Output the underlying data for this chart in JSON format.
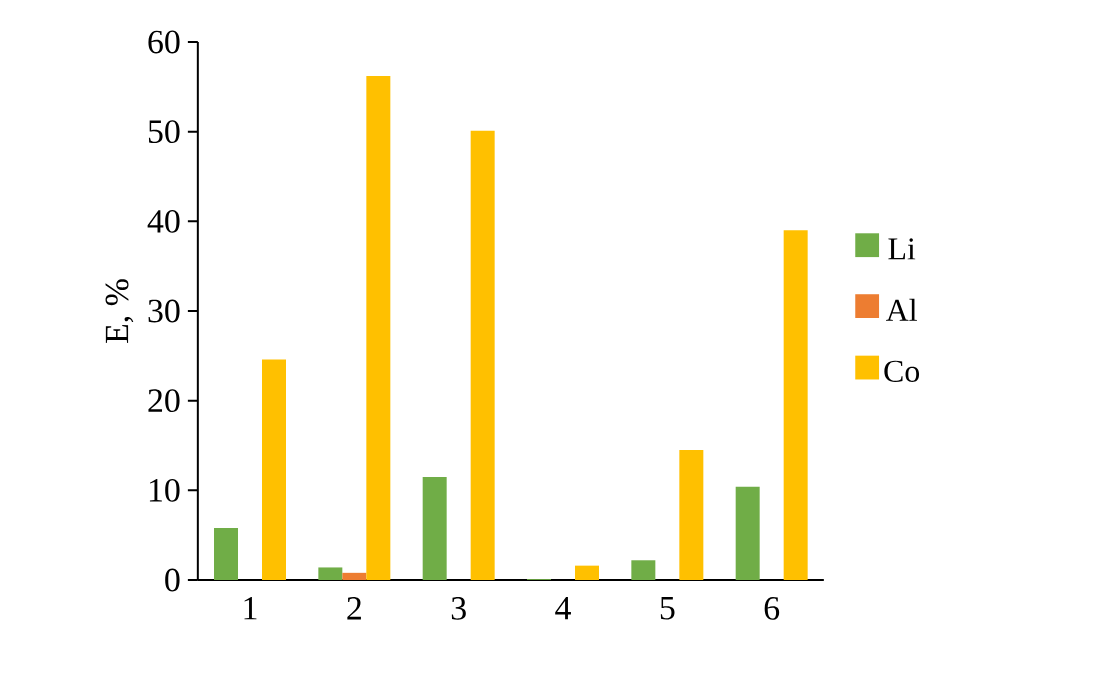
{
  "chart_data": {
    "type": "bar",
    "ylabel": "E, %",
    "categories": [
      "1",
      "2",
      "3",
      "4",
      "5",
      "6"
    ],
    "series": [
      {
        "name": "Li",
        "color": "#70ad47",
        "values": [
          5.8,
          1.4,
          11.5,
          0.1,
          2.2,
          10.4
        ]
      },
      {
        "name": "Al",
        "color": "#ed7d31",
        "values": [
          0,
          0.8,
          0,
          0,
          0,
          0
        ]
      },
      {
        "name": "Co",
        "color": "#ffc000",
        "values": [
          24.6,
          56.2,
          50.1,
          1.6,
          14.5,
          39.0
        ]
      }
    ],
    "ylim": [
      0,
      60
    ],
    "yticks": [
      0,
      10,
      20,
      30,
      40,
      50,
      60
    ],
    "legend": "right",
    "grid": false
  }
}
